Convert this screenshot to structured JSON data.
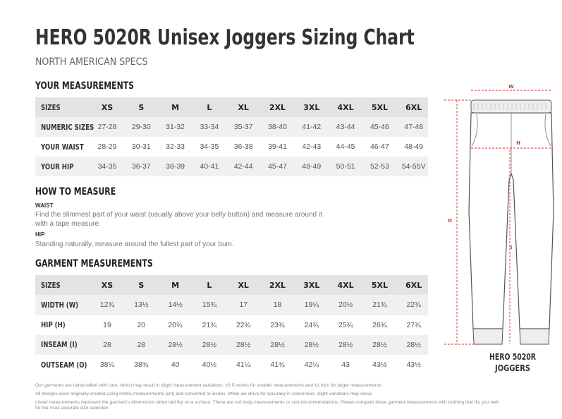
{
  "header": {
    "title": "HERO 5020R Unisex Joggers Sizing Chart",
    "subtitle": "NORTH AMERICAN SPECS"
  },
  "your_measurements": {
    "title": "YOUR MEASUREMENTS",
    "columns": [
      "SIZES",
      "XS",
      "S",
      "M",
      "L",
      "XL",
      "2XL",
      "3XL",
      "4XL",
      "5XL",
      "6XL"
    ],
    "rows": [
      [
        "NUMERIC SIZES",
        "27-28",
        "29-30",
        "31-32",
        "33-34",
        "35-37",
        "38-40",
        "41-42",
        "43-44",
        "45-46",
        "47-48"
      ],
      [
        "YOUR WAIST",
        "28-29",
        "30-31",
        "32-33",
        "34-35",
        "36-38",
        "39-41",
        "42-43",
        "44-45",
        "46-47",
        "48-49"
      ],
      [
        "YOUR HIP",
        "34-35",
        "36-37",
        "38-39",
        "40-41",
        "42-44",
        "45-47",
        "48-49",
        "50-51",
        "52-53",
        "54-55V"
      ]
    ]
  },
  "how_to_measure": {
    "title": "HOW TO MEASURE",
    "items": [
      {
        "label": "WAIST",
        "text": "Find the slimmest part of your waist (usually above your belly button) and measure around it with a tape measure."
      },
      {
        "label": "HIP",
        "text": "Standing naturally, measure around the fullest part of your bum."
      }
    ]
  },
  "garment_measurements": {
    "title": "GARMENT MEASUREMENTS",
    "columns": [
      "SIZES",
      "XS",
      "S",
      "M",
      "L",
      "XL",
      "2XL",
      "3XL",
      "4XL",
      "5XL",
      "6XL"
    ],
    "rows": [
      [
        "WIDTH (W)",
        "12¾",
        "13½",
        "14½",
        "15¾",
        "17",
        "18",
        "19¼",
        "20½",
        "21¾",
        "22¾"
      ],
      [
        "HIP (H)",
        "19",
        "20",
        "20¾",
        "21¾",
        "22¾",
        "23¾",
        "24¾",
        "25¾",
        "26¾",
        "27¾"
      ],
      [
        "INSEAM (I)",
        "28",
        "28",
        "28½",
        "28½",
        "28½",
        "28½",
        "28½",
        "28½",
        "28½",
        "28½"
      ],
      [
        "OUTSEAM (O)",
        "38¼",
        "38¾",
        "40",
        "40½",
        "41¼",
        "41¾",
        "42¼",
        "43",
        "43½",
        "43½"
      ]
    ]
  },
  "footnotes": [
    "Our garments are handcrafted with care, which may result in slight measurement variations: ±0.5 inches for smaller measurements and ±1 inch for larger measurements.",
    "All designs were originally created using metric measurements (cm) and converted to inches. While we strive for accuracy in conversion, slight variations may occur.",
    "Listed measurements represent the garment's dimensions when laid flat on a surface. These are not body measurements or size recommendations. Please compare these garment measurements with clothing that fits you well for the most accurate size selection."
  ],
  "diagram": {
    "labels": {
      "w": "W",
      "h": "H",
      "o": "O",
      "i": "I"
    },
    "caption": [
      "HERO 5020R",
      "JOGGERS"
    ]
  }
}
